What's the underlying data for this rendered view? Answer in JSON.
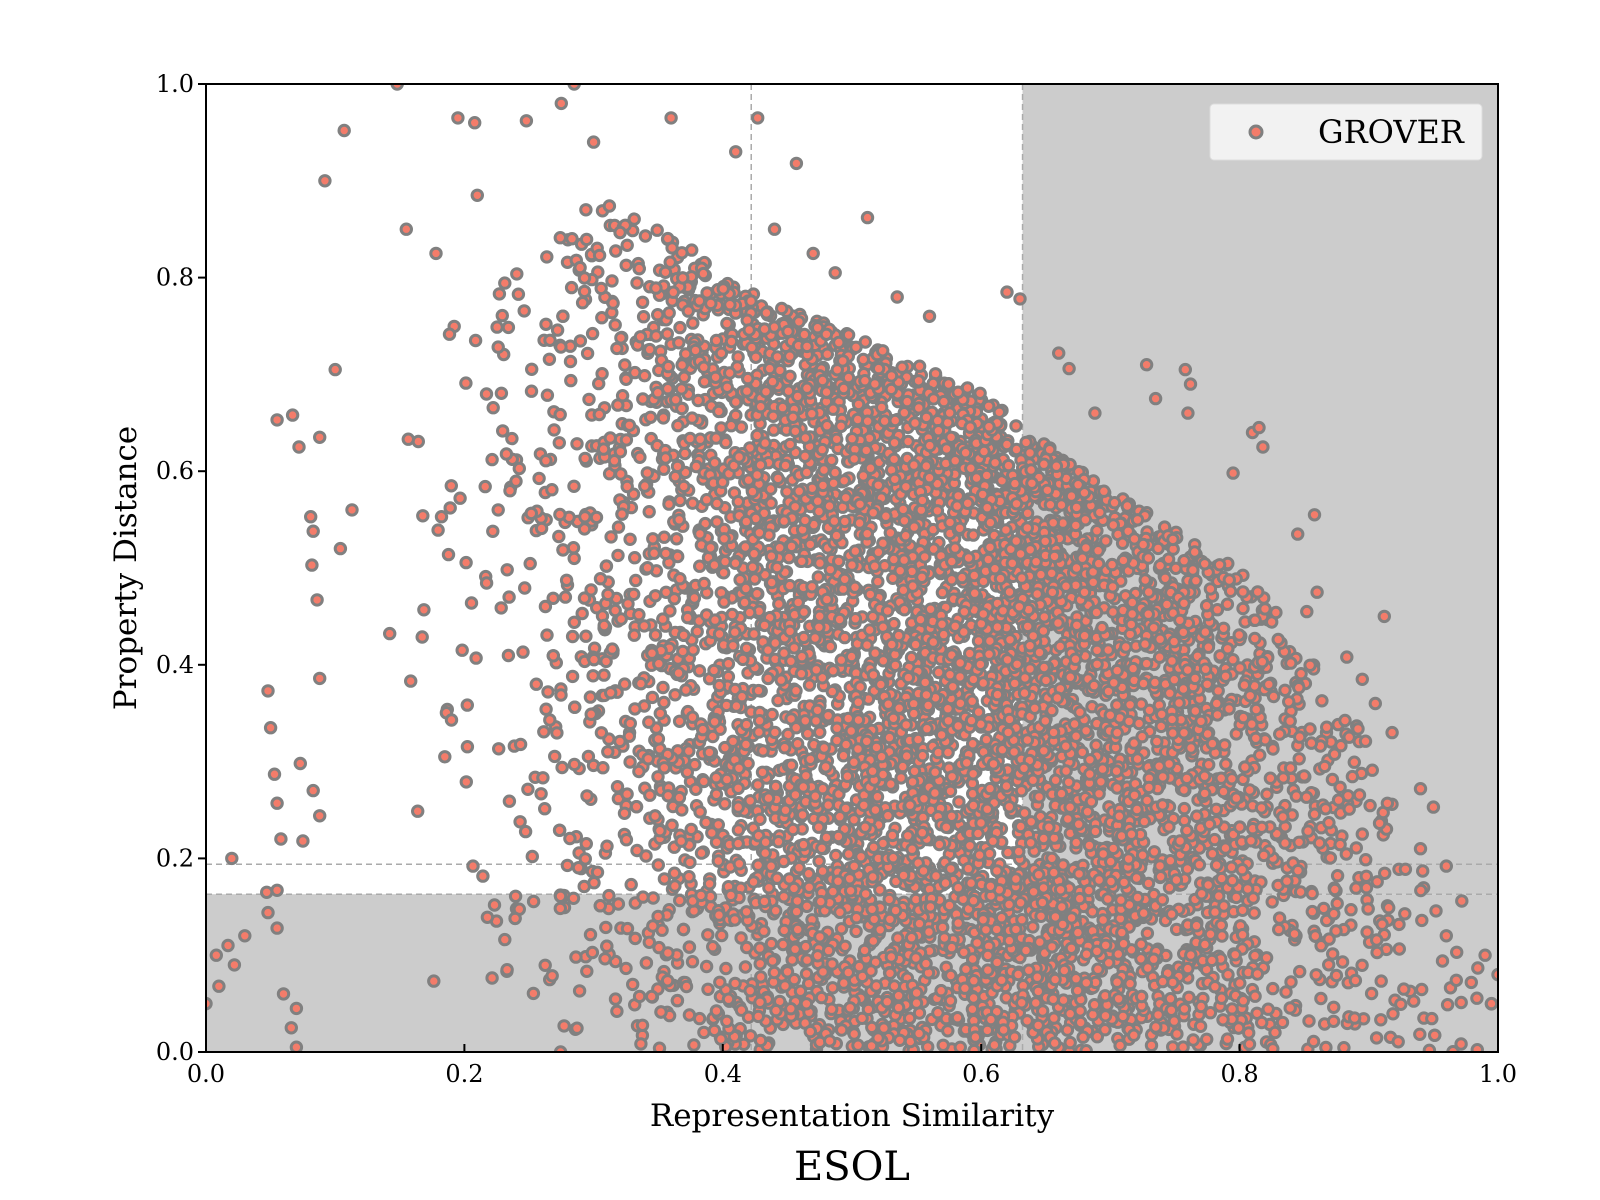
{
  "chart_data": {
    "type": "scatter",
    "title": "ESOL",
    "xlabel": "Representation Similarity",
    "ylabel": "Property Distance",
    "xlim": [
      0.0,
      1.0
    ],
    "ylim": [
      0.0,
      1.0
    ],
    "x_ticks": [
      "0.0",
      "0.2",
      "0.4",
      "0.6",
      "0.8",
      "1.0"
    ],
    "y_ticks": [
      "0.0",
      "0.2",
      "0.4",
      "0.6",
      "0.8",
      "1.0"
    ],
    "grid": false,
    "legend_position": "top-right",
    "marker": {
      "fill": "#f47c6a",
      "edge": "#808080"
    },
    "shaded_regions": [
      {
        "x": [
          0.0,
          1.0
        ],
        "y": [
          0.0,
          0.163
        ],
        "color": "#cccccc"
      },
      {
        "x": [
          0.632,
          1.0
        ],
        "y": [
          0.163,
          1.0
        ],
        "color": "#cccccc"
      }
    ],
    "reference_lines": {
      "vertical": [
        0.422,
        0.632
      ],
      "horizontal": [
        0.163,
        0.194
      ]
    },
    "series": [
      {
        "name": "GROVER",
        "envelope": [
          [
            0.1,
            0.42
          ],
          [
            0.13,
            0.62
          ],
          [
            0.16,
            0.72
          ],
          [
            0.2,
            0.78
          ],
          [
            0.25,
            0.82
          ],
          [
            0.3,
            0.88
          ],
          [
            0.35,
            0.86
          ],
          [
            0.4,
            0.8
          ],
          [
            0.45,
            0.77
          ],
          [
            0.5,
            0.74
          ],
          [
            0.55,
            0.71
          ],
          [
            0.6,
            0.68
          ],
          [
            0.65,
            0.63
          ],
          [
            0.7,
            0.58
          ],
          [
            0.75,
            0.54
          ],
          [
            0.8,
            0.5
          ],
          [
            0.85,
            0.42
          ],
          [
            0.9,
            0.32
          ],
          [
            0.93,
            0.22
          ],
          [
            0.96,
            0.14
          ],
          [
            1.0,
            0.08
          ]
        ],
        "outliers": [
          [
            0.148,
            1.0
          ],
          [
            0.285,
            1.0
          ],
          [
            0.275,
            0.98
          ],
          [
            0.107,
            0.952
          ],
          [
            0.195,
            0.965
          ],
          [
            0.208,
            0.96
          ],
          [
            0.248,
            0.962
          ],
          [
            0.36,
            0.965
          ],
          [
            0.427,
            0.965
          ],
          [
            0.3,
            0.94
          ],
          [
            0.41,
            0.93
          ],
          [
            0.092,
            0.9
          ],
          [
            0.457,
            0.918
          ],
          [
            0.21,
            0.885
          ],
          [
            0.512,
            0.862
          ],
          [
            0.155,
            0.85
          ],
          [
            0.44,
            0.85
          ],
          [
            0.178,
            0.825
          ],
          [
            0.47,
            0.825
          ],
          [
            0.487,
            0.805
          ],
          [
            0.62,
            0.785
          ],
          [
            0.63,
            0.778
          ],
          [
            0.535,
            0.78
          ],
          [
            0.56,
            0.76
          ],
          [
            0.067,
            0.658
          ],
          [
            0.055,
            0.653
          ],
          [
            0.072,
            0.625
          ],
          [
            0.088,
            0.635
          ],
          [
            0.081,
            0.553
          ],
          [
            0.083,
            0.538
          ],
          [
            0.082,
            0.503
          ],
          [
            0.1,
            0.705
          ],
          [
            0.113,
            0.56
          ],
          [
            0.104,
            0.52
          ],
          [
            0.086,
            0.467
          ],
          [
            0.088,
            0.386
          ],
          [
            0.048,
            0.373
          ],
          [
            0.05,
            0.335
          ],
          [
            0.053,
            0.287
          ],
          [
            0.055,
            0.257
          ],
          [
            0.073,
            0.298
          ],
          [
            0.075,
            0.218
          ],
          [
            0.083,
            0.27
          ],
          [
            0.088,
            0.244
          ],
          [
            0.058,
            0.22
          ],
          [
            0.02,
            0.2
          ],
          [
            0.047,
            0.165
          ],
          [
            0.055,
            0.167
          ],
          [
            0.048,
            0.144
          ],
          [
            0.055,
            0.128
          ],
          [
            0.03,
            0.12
          ],
          [
            0.022,
            0.09
          ],
          [
            0.017,
            0.11
          ],
          [
            0.008,
            0.1
          ],
          [
            0.01,
            0.068
          ],
          [
            0.0,
            0.05
          ],
          [
            0.06,
            0.06
          ],
          [
            0.07,
            0.045
          ],
          [
            0.066,
            0.025
          ],
          [
            0.07,
            0.005
          ],
          [
            0.66,
            0.722
          ],
          [
            0.668,
            0.706
          ],
          [
            0.728,
            0.71
          ],
          [
            0.758,
            0.705
          ],
          [
            0.762,
            0.69
          ],
          [
            0.735,
            0.675
          ],
          [
            0.76,
            0.66
          ],
          [
            0.688,
            0.66
          ],
          [
            0.81,
            0.64
          ],
          [
            0.815,
            0.645
          ],
          [
            0.818,
            0.625
          ],
          [
            0.795,
            0.598
          ],
          [
            0.858,
            0.555
          ],
          [
            0.845,
            0.535
          ],
          [
            0.86,
            0.475
          ],
          [
            0.912,
            0.45
          ],
          [
            0.852,
            0.455
          ],
          [
            0.883,
            0.408
          ],
          [
            0.895,
            0.385
          ],
          [
            0.905,
            0.36
          ],
          [
            0.918,
            0.33
          ],
          [
            0.94,
            0.272
          ],
          [
            0.95,
            0.253
          ],
          [
            0.94,
            0.21
          ],
          [
            0.96,
            0.192
          ],
          [
            0.972,
            0.156
          ],
          [
            0.96,
            0.12
          ],
          [
            0.968,
            0.103
          ],
          [
            0.99,
            0.1
          ],
          [
            1.0,
            0.08
          ],
          [
            0.995,
            0.05
          ]
        ]
      }
    ]
  }
}
